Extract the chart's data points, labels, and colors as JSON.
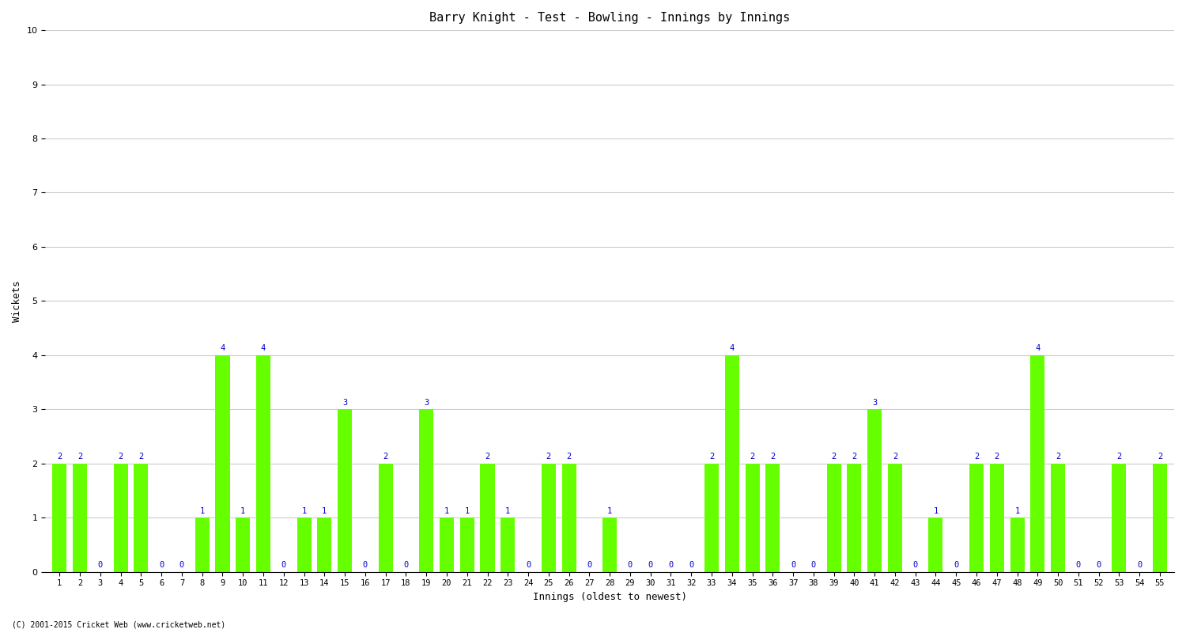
{
  "title": "Barry Knight - Test - Bowling - Innings by Innings",
  "xlabel": "Innings (oldest to newest)",
  "ylabel": "Wickets",
  "ylim": [
    0,
    10
  ],
  "yticks": [
    0,
    1,
    2,
    3,
    4,
    5,
    6,
    7,
    8,
    9,
    10
  ],
  "bar_color": "#66ff00",
  "label_color": "#0000cc",
  "background_color": "#ffffff",
  "grid_color": "#cccccc",
  "footer": "(C) 2001-2015 Cricket Web (www.cricketweb.net)",
  "categories": [
    "1",
    "2",
    "3",
    "4",
    "5",
    "6",
    "7",
    "8",
    "9",
    "10",
    "11",
    "12",
    "13",
    "14",
    "15",
    "16",
    "17",
    "18",
    "19",
    "20",
    "21",
    "22",
    "23",
    "24",
    "25",
    "26",
    "27",
    "28",
    "29",
    "30",
    "31",
    "32",
    "33",
    "34",
    "35",
    "36",
    "37",
    "38",
    "39",
    "40",
    "41",
    "42",
    "43",
    "44",
    "45",
    "46",
    "47",
    "48",
    "49",
    "50",
    "51",
    "52",
    "53",
    "54",
    "55"
  ],
  "values": [
    2,
    2,
    0,
    2,
    2,
    0,
    0,
    1,
    4,
    1,
    4,
    0,
    1,
    1,
    3,
    0,
    2,
    0,
    3,
    1,
    1,
    2,
    1,
    0,
    2,
    2,
    0,
    1,
    0,
    0,
    0,
    0,
    2,
    4,
    2,
    2,
    0,
    0,
    2,
    2,
    3,
    2,
    0,
    1,
    0,
    2,
    2,
    1,
    4,
    2,
    0,
    0,
    2,
    0,
    2
  ]
}
